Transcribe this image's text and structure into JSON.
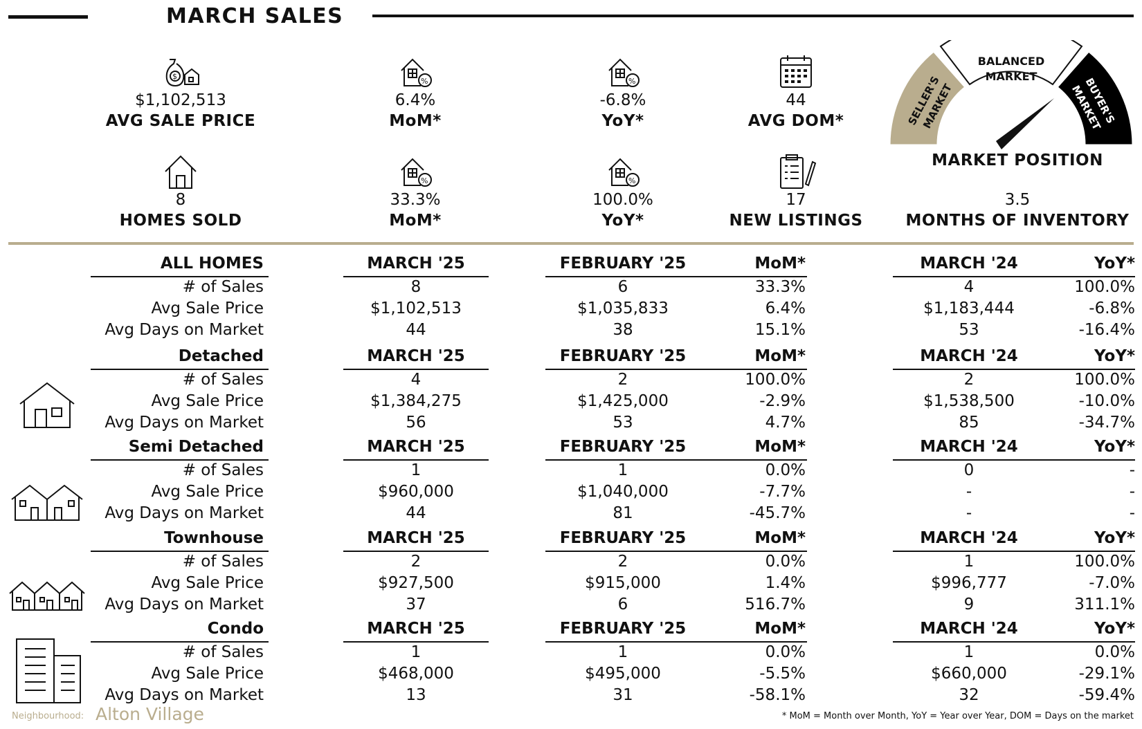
{
  "header": {
    "title": "MARCH SALES"
  },
  "stats_row1": [
    {
      "icon": "money-bag-house-icon",
      "value": "$1,102,513",
      "label": "AVG SALE PRICE"
    },
    {
      "icon": "house-percent-icon",
      "value": "6.4%",
      "label": "MoM*"
    },
    {
      "icon": "house-percent-icon",
      "value": "-6.8%",
      "label": "YoY*"
    },
    {
      "icon": "calendar-icon",
      "value": "44",
      "label": "AVG DOM*"
    }
  ],
  "stats_row2": [
    {
      "icon": "house-icon",
      "value": "8",
      "label": "HOMES SOLD"
    },
    {
      "icon": "house-percent-icon",
      "value": "33.3%",
      "label": "MoM*"
    },
    {
      "icon": "house-percent-icon",
      "value": "100.0%",
      "label": "YoY*"
    },
    {
      "icon": "clipboard-pen-icon",
      "value": "17",
      "label": "NEW LISTINGS"
    },
    {
      "value": "3.5",
      "label": "MONTHS OF INVENTORY"
    }
  ],
  "gauge": {
    "left_label_1": "SELLER'S",
    "left_label_2": "MARKET",
    "middle_label_1": "BALANCED",
    "middle_label_2": "MARKET",
    "right_label_1": "BUYER'S",
    "right_label_2": "MARKET",
    "title": "MARKET POSITION",
    "colors": {
      "sellers": "#b9ad8e",
      "balanced": "#ffffff",
      "buyers": "#000000"
    }
  },
  "row_labels": [
    "# of Sales",
    "Avg Sale Price",
    "Avg Days on Market"
  ],
  "sections": [
    {
      "name": "ALL HOMES",
      "icon": "none",
      "col_current": "MARCH '25",
      "col_prev": "FEBRUARY '25",
      "col_mom": "MoM*",
      "col_lastyear": "MARCH '24",
      "col_yoy": "YoY*",
      "rows": [
        [
          "8",
          "6",
          "33.3%",
          "4",
          "100.0%"
        ],
        [
          "$1,102,513",
          "$1,035,833",
          "6.4%",
          "$1,183,444",
          "-6.8%"
        ],
        [
          "44",
          "38",
          "15.1%",
          "53",
          "-16.4%"
        ]
      ]
    },
    {
      "name": "Detached",
      "icon": "detached-house-icon",
      "col_current": "MARCH '25",
      "col_prev": "FEBRUARY '25",
      "col_mom": "MoM*",
      "col_lastyear": "MARCH '24",
      "col_yoy": "YoY*",
      "rows": [
        [
          "4",
          "2",
          "100.0%",
          "2",
          "100.0%"
        ],
        [
          "$1,384,275",
          "$1,425,000",
          "-2.9%",
          "$1,538,500",
          "-10.0%"
        ],
        [
          "56",
          "53",
          "4.7%",
          "85",
          "-34.7%"
        ]
      ]
    },
    {
      "name": "Semi Detached",
      "icon": "semi-detached-icon",
      "col_current": "MARCH '25",
      "col_prev": "FEBRUARY '25",
      "col_mom": "MoM*",
      "col_lastyear": "MARCH '24",
      "col_yoy": "YoY*",
      "rows": [
        [
          "1",
          "1",
          "0.0%",
          "0",
          "-"
        ],
        [
          "$960,000",
          "$1,040,000",
          "-7.7%",
          "-",
          "-"
        ],
        [
          "44",
          "81",
          "-45.7%",
          "-",
          "-"
        ]
      ]
    },
    {
      "name": "Townhouse",
      "icon": "townhouse-icon",
      "col_current": "MARCH '25",
      "col_prev": "FEBRUARY '25",
      "col_mom": "MoM*",
      "col_lastyear": "MARCH '24",
      "col_yoy": "YoY*",
      "rows": [
        [
          "2",
          "2",
          "0.0%",
          "1",
          "100.0%"
        ],
        [
          "$927,500",
          "$915,000",
          "1.4%",
          "$996,777",
          "-7.0%"
        ],
        [
          "37",
          "6",
          "516.7%",
          "9",
          "311.1%"
        ]
      ]
    },
    {
      "name": "Condo",
      "icon": "condo-building-icon",
      "col_current": "MARCH '25",
      "col_prev": "FEBRUARY '25",
      "col_mom": "MoM*",
      "col_lastyear": "MARCH '24",
      "col_yoy": "YoY*",
      "rows": [
        [
          "1",
          "1",
          "0.0%",
          "1",
          "0.0%"
        ],
        [
          "$468,000",
          "$495,000",
          "-5.5%",
          "$660,000",
          "-29.1%"
        ],
        [
          "13",
          "31",
          "-58.1%",
          "32",
          "-59.4%"
        ]
      ]
    }
  ],
  "footer": {
    "neighbourhood_label": "Neighbourhood:",
    "neighbourhood_name": "Alton Village",
    "legend": "* MoM = Month over Month, YoY = Year over Year, DOM = Days on the market"
  }
}
